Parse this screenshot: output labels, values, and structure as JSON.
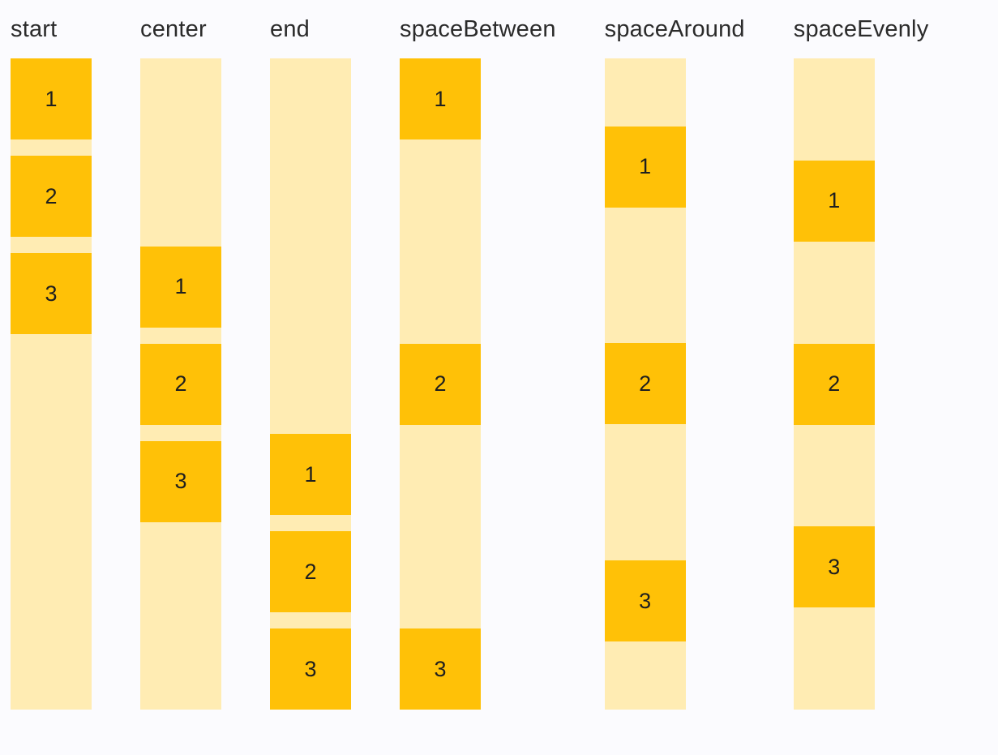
{
  "page": {
    "background": "#FBFBFE"
  },
  "colors": {
    "box": "#FFC107",
    "track": "#FFECB3",
    "label_text": "#2b2b2b",
    "number_text": "#1f1f1f"
  },
  "columns": [
    {
      "label": "start",
      "items": [
        "1",
        "2",
        "3"
      ]
    },
    {
      "label": "center",
      "items": [
        "1",
        "2",
        "3"
      ]
    },
    {
      "label": "end",
      "items": [
        "1",
        "2",
        "3"
      ]
    },
    {
      "label": "spaceBetween",
      "items": [
        "1",
        "2",
        "3"
      ]
    },
    {
      "label": "spaceAround",
      "items": [
        "1",
        "2",
        "3"
      ]
    },
    {
      "label": "spaceEvenly",
      "items": [
        "1",
        "2",
        "3"
      ]
    }
  ]
}
